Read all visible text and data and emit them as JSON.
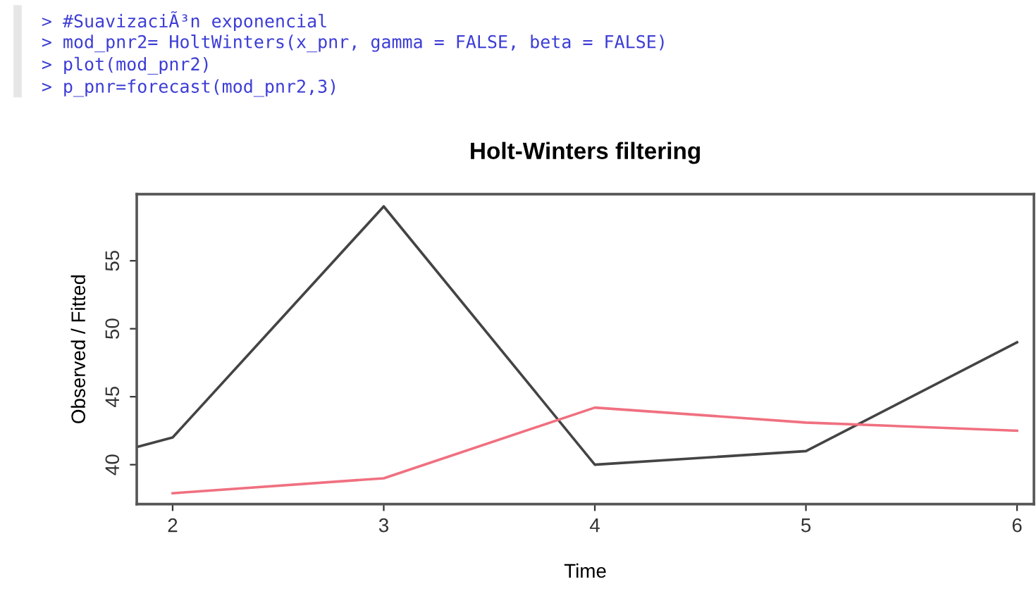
{
  "chart_data": {
    "type": "line",
    "title": "Holt-Winters filtering",
    "xlabel": "Time",
    "ylabel": "Observed / Fitted",
    "annotations": [
      "> #SuavizaciÃ³n exponencial",
      "> mod_pnr2= HoltWinters(x_pnr, gamma = FALSE, beta = FALSE)",
      "> plot(mod_pnr2)",
      "> p_pnr=forecast(mod_pnr2,3)"
    ],
    "series": [
      {
        "color": "#444444",
        "x": [
          1.83,
          2,
          3,
          4,
          5,
          6
        ],
        "values": [
          41.3,
          42.0,
          59.0,
          40.0,
          41.0,
          49.0
        ]
      },
      {
        "color": "#f07080",
        "x": [
          2,
          3,
          4,
          5,
          6
        ],
        "values": [
          37.9,
          39.0,
          44.2,
          43.1,
          42.5
        ]
      }
    ],
    "xlim": [
      1.83,
      6.08
    ],
    "ylim": [
      37.1,
      59.9
    ],
    "xticks": [
      2,
      3,
      4,
      5,
      6
    ],
    "yticks": [
      40,
      45,
      50,
      55
    ],
    "grid": false
  }
}
